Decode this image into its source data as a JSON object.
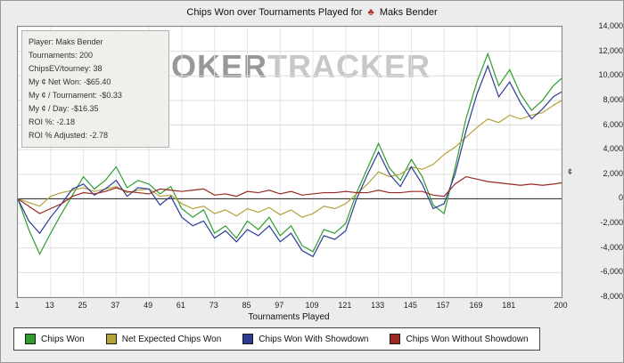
{
  "header": {
    "title_prefix": "Chips Won over Tournaments Played for",
    "suit_icon": "♣",
    "player": "Maks Bender"
  },
  "watermark": {
    "part1": "POKER",
    "part2": "TRACKER"
  },
  "info_box": {
    "lines": [
      "Player: Maks Bender",
      "Tournaments: 200",
      "ChipsEV/tourney: 38",
      "My ¢ Net Won: -$65.40",
      "My ¢ / Tournament: -$0.33",
      "My ¢ / Day: -$16.35",
      "ROI %: -2.18",
      "ROI % Adjusted: -2.78"
    ]
  },
  "chart_data": {
    "type": "line",
    "title": "Chips Won over Tournaments Played for ♣ Maks Bender",
    "xlabel": "Tournaments Played",
    "ylabel_unit": "¢",
    "xlim": [
      1,
      200
    ],
    "ylim": [
      -8000,
      14000
    ],
    "y_tick_step": 2000,
    "x_ticks": [
      1,
      13,
      25,
      37,
      49,
      61,
      73,
      85,
      97,
      109,
      121,
      133,
      145,
      157,
      169,
      181,
      200
    ],
    "grid": true,
    "legend_position": "bottom",
    "x": [
      1,
      5,
      9,
      13,
      17,
      21,
      25,
      29,
      33,
      37,
      41,
      45,
      49,
      53,
      57,
      61,
      65,
      69,
      73,
      77,
      81,
      85,
      89,
      93,
      97,
      101,
      105,
      109,
      113,
      117,
      121,
      125,
      129,
      133,
      137,
      141,
      145,
      149,
      153,
      157,
      161,
      165,
      169,
      173,
      177,
      181,
      185,
      189,
      193,
      197,
      200
    ],
    "series": [
      {
        "name": "Chips Won",
        "color": "#2f9e2f",
        "values": [
          0,
          -2500,
          -4500,
          -2800,
          -1200,
          300,
          1800,
          800,
          1500,
          2600,
          900,
          1500,
          1200,
          400,
          1000,
          -800,
          -1500,
          -900,
          -2800,
          -2200,
          -3200,
          -1800,
          -2500,
          -1500,
          -3000,
          -2200,
          -3800,
          -4300,
          -2500,
          -2800,
          -2000,
          500,
          2500,
          4500,
          2500,
          1500,
          3200,
          1800,
          -500,
          -1200,
          2500,
          6500,
          9500,
          11800,
          9200,
          10500,
          8500,
          7200,
          8000,
          9200,
          9800
        ]
      },
      {
        "name": "Net Expected Chips Won",
        "color": "#b3a23a",
        "values": [
          0,
          -300,
          -600,
          200,
          500,
          700,
          900,
          600,
          800,
          1000,
          500,
          700,
          800,
          200,
          300,
          -400,
          -800,
          -600,
          -1200,
          -900,
          -1400,
          -800,
          -1100,
          -700,
          -1300,
          -900,
          -1500,
          -1200,
          -600,
          -800,
          -400,
          400,
          1200,
          2200,
          1800,
          2000,
          2600,
          2400,
          2800,
          3600,
          4200,
          5000,
          5800,
          6500,
          6200,
          6800,
          6500,
          6800,
          7000,
          7600,
          8000
        ]
      },
      {
        "name": "Chips Won With Showdown",
        "color": "#2b3c97",
        "values": [
          0,
          -1800,
          -2800,
          -1500,
          -400,
          800,
          1200,
          300,
          800,
          1500,
          200,
          900,
          800,
          -500,
          200,
          -1500,
          -2200,
          -1800,
          -3200,
          -2600,
          -3500,
          -2500,
          -3000,
          -2200,
          -3500,
          -2800,
          -4200,
          -4700,
          -3000,
          -3300,
          -2600,
          0,
          2000,
          3800,
          2000,
          1000,
          2600,
          1200,
          -800,
          -400,
          2000,
          5500,
          8500,
          10800,
          8300,
          9500,
          7800,
          6500,
          7300,
          8300,
          8700
        ]
      },
      {
        "name": "Chips Won Without Showdown",
        "color": "#992a22",
        "values": [
          0,
          -600,
          -1200,
          -800,
          -400,
          200,
          500,
          400,
          600,
          900,
          600,
          500,
          400,
          800,
          700,
          600,
          700,
          800,
          300,
          400,
          200,
          600,
          500,
          700,
          400,
          600,
          300,
          400,
          500,
          500,
          600,
          500,
          500,
          700,
          500,
          500,
          600,
          600,
          300,
          200,
          1200,
          1800,
          1600,
          1400,
          1300,
          1200,
          1100,
          1200,
          1100,
          1200,
          1300
        ]
      }
    ]
  }
}
